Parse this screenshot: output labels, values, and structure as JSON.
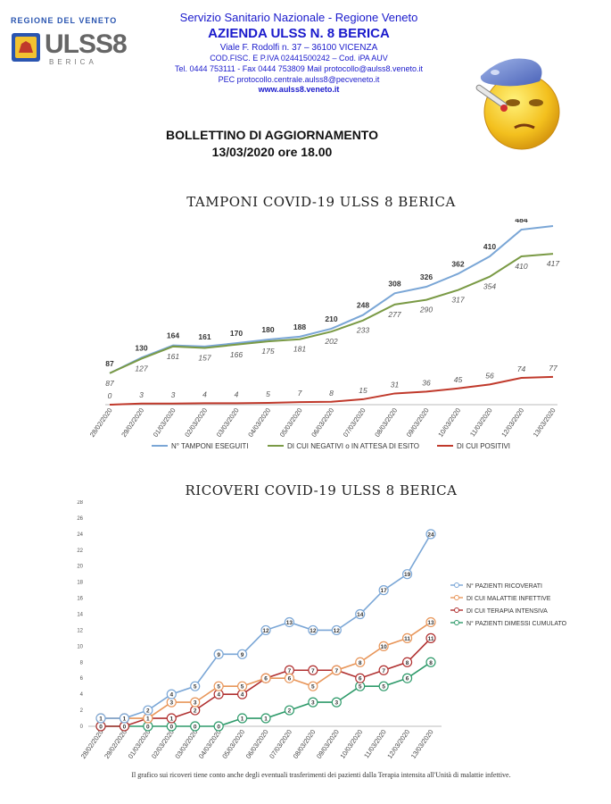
{
  "header": {
    "region_label": "REGIONE DEL VENETO",
    "logo_text": "ULSS8",
    "logo_subtext": "BERICA",
    "lines": [
      "Servizio Sanitario Nazionale - Regione Veneto",
      "AZIENDA ULSS N. 8 BERICA",
      "Viale F. Rodolfi n. 37 – 36100 VICENZA",
      "COD.FISC. E P.IVA 02441500242 – Cod. iPA AUV",
      "Tel.  0444 753111 - Fax  0444 753809 Mail  protocollo@aulss8.veneto.it",
      "PEC protocollo.centrale.aulss8@pecveneto.it",
      "www.aulss8.veneto.it"
    ],
    "emoji_icon": "sick-face-thermometer-icepack-icon"
  },
  "bulletin": {
    "title": "BOLLETTINO DI AGGIORNAMENTO",
    "date": "13/03/2020 ore 18.00"
  },
  "footnote": "Il grafico sui ricoveri tiene conto anche degli eventuali trasferimenti dei pazienti dalla Terapia intensita all'Unità di malattie infettive.",
  "chart_data": [
    {
      "type": "line",
      "title": "TAMPONI COVID-19 ULSS 8 BERICA",
      "categories": [
        "28/02/2020",
        "29/02/2020",
        "01/03/2020",
        "02/03/2020",
        "03/03/2020",
        "04/03/2020",
        "05/03/2020",
        "06/03/2020",
        "07/03/2020",
        "08/03/2020",
        "09/03/2020",
        "10/03/2020",
        "11/03/2020",
        "12/03/2020",
        "13/03/2020"
      ],
      "series": [
        {
          "name": "N° TAMPONI ESEGUITI",
          "color": "#7aa6d6",
          "values": [
            87,
            130,
            164,
            161,
            170,
            180,
            188,
            210,
            248,
            308,
            326,
            362,
            410,
            484,
            494
          ]
        },
        {
          "name": "DI CUI NEGATIVI o IN ATTESA DI ESITO",
          "color": "#7a9a45",
          "values": [
            87,
            127,
            161,
            157,
            166,
            175,
            181,
            202,
            233,
            277,
            290,
            317,
            354,
            410,
            417
          ]
        },
        {
          "name": "DI CUI POSITIVI",
          "color": "#c0392b",
          "values": [
            0,
            3,
            3,
            4,
            4,
            5,
            7,
            8,
            15,
            31,
            36,
            45,
            56,
            74,
            77
          ]
        }
      ],
      "legend": "bottom",
      "grid": false
    },
    {
      "type": "line",
      "title": "RICOVERI COVID-19 ULSS 8 BERICA",
      "categories": [
        "28/02/2020",
        "29/02/2020",
        "01/03/2020",
        "02/03/2020",
        "03/03/2020",
        "04/03/2020",
        "05/03/2020",
        "06/03/2020",
        "07/03/2020",
        "08/03/2020",
        "09/03/2020",
        "10/03/2020",
        "11/03/2020",
        "12/03/2020",
        "13/03/2020"
      ],
      "ylim": [
        0,
        28
      ],
      "yticks": [
        "0",
        "2",
        "4",
        "6",
        "8",
        "10",
        "12",
        "14",
        "16",
        "18",
        "20",
        "22",
        "24",
        "26",
        "28"
      ],
      "series": [
        {
          "name": "N° PAZIENTI RICOVERATI",
          "color": "#7aa6d6",
          "values": [
            1,
            1,
            2,
            4,
            5,
            9,
            9,
            12,
            13,
            12,
            12,
            14,
            17,
            19,
            24
          ]
        },
        {
          "name": "DI CUI MALATTIE INFETTIVE",
          "color": "#e8965a",
          "values": [
            1,
            1,
            1,
            3,
            3,
            5,
            5,
            6,
            6,
            5,
            7,
            8,
            10,
            11,
            13
          ]
        },
        {
          "name": "DI CUI TERAPIA INTENSIVA",
          "color": "#b03030",
          "values": [
            0,
            0,
            1,
            1,
            2,
            4,
            4,
            6,
            7,
            7,
            7,
            6,
            7,
            8,
            11
          ]
        },
        {
          "name": "N° PAZIENTI DIMESSI CUMULATO",
          "color": "#2e9a6a",
          "values": [
            0,
            0,
            0,
            0,
            0,
            0,
            1,
            1,
            2,
            3,
            3,
            5,
            5,
            6,
            8
          ]
        }
      ],
      "legend": "right",
      "grid": false
    }
  ]
}
